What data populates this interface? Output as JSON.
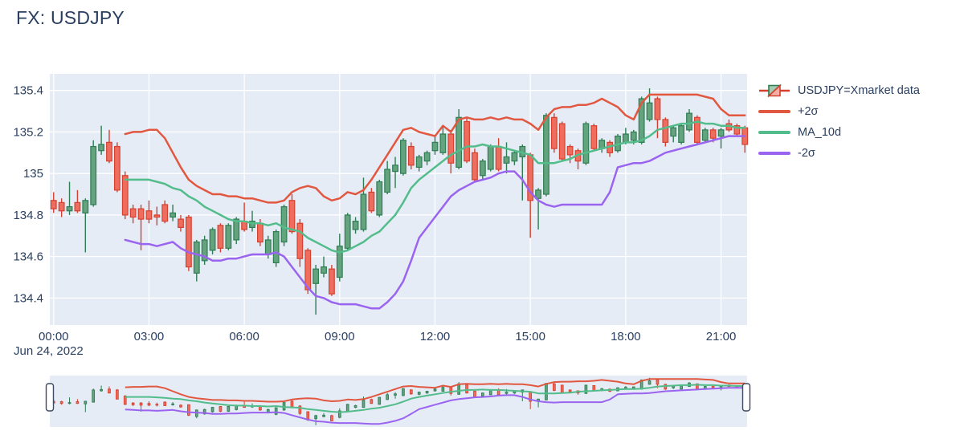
{
  "title": "FX: USDJPY",
  "date_label": "Jun 24, 2022",
  "colors": {
    "paper": "#ffffff",
    "plot_bg": "#e5ecf6",
    "grid": "#ffffff",
    "text": "#2a3f5f",
    "up_line": "#2f7d53",
    "up_fill": "#63a37d",
    "up_fill_legend": "#a3cab2",
    "down_line": "#d5402f",
    "down_fill": "#ed6e5e",
    "down_fill_legend": "#f3b0a8",
    "sigma_plus": "#e2573f",
    "ma": "#53bc8b",
    "sigma_minus": "#9b64f0",
    "handle_stroke": "#3c4a63"
  },
  "legend": {
    "items": [
      {
        "label": "USDJPY=Xmarket data",
        "type": "candlestick"
      },
      {
        "label": "+2σ",
        "type": "line",
        "color_key": "sigma_plus"
      },
      {
        "label": "MA_10d",
        "type": "line",
        "color_key": "ma"
      },
      {
        "label": "-2σ",
        "type": "line",
        "color_key": "sigma_minus"
      }
    ]
  },
  "chart_data": {
    "type": "candlestick",
    "title": "FX: USDJPY",
    "date": "Jun 24, 2022",
    "start_time": "00:00",
    "interval_minutes": 15,
    "legend_position": "right",
    "grid": true,
    "rangeslider": true,
    "x_ticks": {
      "labels": [
        "00:00",
        "03:00",
        "06:00",
        "09:00",
        "12:00",
        "15:00",
        "18:00",
        "21:00"
      ],
      "hours": [
        0,
        3,
        6,
        9,
        12,
        15,
        18,
        21
      ]
    },
    "y_ticks": {
      "labels": [
        "134.4",
        "134.6",
        "134.8",
        "135",
        "135.2",
        "135.4"
      ],
      "values": [
        134.4,
        134.6,
        134.8,
        135,
        135.2,
        135.4
      ]
    },
    "x_range_hours": [
      -0.12,
      21.82
    ],
    "y_range": [
      134.27,
      135.48
    ],
    "candles_ohlc": [
      [
        134.87,
        134.91,
        134.81,
        134.83
      ],
      [
        134.86,
        134.88,
        134.79,
        134.82
      ],
      [
        134.82,
        134.96,
        134.8,
        134.84
      ],
      [
        134.86,
        134.92,
        134.81,
        134.82
      ],
      [
        134.81,
        134.88,
        134.62,
        134.87
      ],
      [
        134.85,
        135.16,
        134.84,
        135.13
      ],
      [
        135.11,
        135.23,
        135.09,
        135.14
      ],
      [
        135.15,
        135.21,
        135.05,
        135.06
      ],
      [
        135.13,
        135.15,
        134.91,
        134.92
      ],
      [
        134.99,
        135.01,
        134.78,
        134.8
      ],
      [
        134.83,
        134.85,
        134.76,
        134.79
      ],
      [
        134.83,
        134.85,
        134.63,
        134.78
      ],
      [
        134.82,
        134.87,
        134.76,
        134.78
      ],
      [
        134.8,
        134.84,
        134.75,
        134.79
      ],
      [
        134.85,
        134.87,
        134.76,
        134.77
      ],
      [
        134.79,
        134.85,
        134.77,
        134.81
      ],
      [
        134.78,
        134.8,
        134.72,
        134.74
      ],
      [
        134.79,
        134.8,
        134.53,
        134.55
      ],
      [
        134.52,
        134.68,
        134.48,
        134.67
      ],
      [
        134.58,
        134.7,
        134.56,
        134.68
      ],
      [
        134.63,
        134.74,
        134.61,
        134.73
      ],
      [
        134.75,
        134.76,
        134.62,
        134.64
      ],
      [
        134.64,
        134.76,
        134.63,
        134.75
      ],
      [
        134.68,
        134.79,
        134.66,
        134.78
      ],
      [
        134.77,
        134.86,
        134.72,
        134.73
      ],
      [
        134.74,
        134.82,
        134.72,
        134.77
      ],
      [
        134.76,
        134.78,
        134.65,
        134.67
      ],
      [
        134.61,
        134.7,
        134.59,
        134.68
      ],
      [
        134.57,
        134.73,
        134.55,
        134.72
      ],
      [
        134.67,
        134.85,
        134.65,
        134.84
      ],
      [
        134.87,
        134.9,
        134.71,
        134.72
      ],
      [
        134.76,
        134.78,
        134.55,
        134.59
      ],
      [
        134.63,
        134.64,
        134.42,
        134.44
      ],
      [
        134.47,
        134.56,
        134.32,
        134.54
      ],
      [
        134.52,
        134.6,
        134.5,
        134.55
      ],
      [
        134.54,
        134.56,
        134.41,
        134.42
      ],
      [
        134.5,
        134.71,
        134.48,
        134.65
      ],
      [
        134.64,
        134.81,
        134.63,
        134.8
      ],
      [
        134.73,
        134.79,
        134.71,
        134.77
      ],
      [
        134.73,
        134.98,
        134.72,
        134.9
      ],
      [
        134.91,
        134.93,
        134.81,
        134.82
      ],
      [
        134.8,
        134.97,
        134.79,
        134.96
      ],
      [
        134.91,
        135.06,
        134.9,
        135.02
      ],
      [
        135.01,
        135.08,
        134.93,
        135.04
      ],
      [
        135.0,
        135.17,
        134.99,
        135.16
      ],
      [
        135.13,
        135.15,
        135.02,
        135.04
      ],
      [
        135.03,
        135.09,
        135.01,
        135.08
      ],
      [
        135.06,
        135.11,
        135.04,
        135.1
      ],
      [
        135.11,
        135.18,
        135.09,
        135.15
      ],
      [
        135.1,
        135.23,
        135.09,
        135.19
      ],
      [
        135.19,
        135.21,
        135.0,
        135.05
      ],
      [
        135.03,
        135.31,
        135.02,
        135.27
      ],
      [
        135.25,
        135.27,
        135.05,
        135.06
      ],
      [
        135.1,
        135.12,
        134.96,
        134.97
      ],
      [
        134.99,
        135.07,
        134.97,
        135.06
      ],
      [
        135.02,
        135.14,
        135.01,
        135.13
      ],
      [
        135.13,
        135.17,
        135.01,
        135.02
      ],
      [
        135.05,
        135.15,
        135.0,
        135.08
      ],
      [
        135.06,
        135.11,
        135.04,
        135.1
      ],
      [
        135.08,
        135.14,
        134.87,
        135.13
      ],
      [
        135.09,
        135.1,
        134.69,
        134.87
      ],
      [
        134.88,
        134.93,
        134.73,
        134.92
      ],
      [
        134.9,
        135.29,
        134.89,
        135.28
      ],
      [
        135.27,
        135.29,
        135.1,
        135.12
      ],
      [
        135.24,
        135.25,
        135.06,
        135.07
      ],
      [
        135.13,
        135.14,
        135.05,
        135.09
      ],
      [
        135.11,
        135.12,
        135.02,
        135.06
      ],
      [
        135.05,
        135.25,
        135.04,
        135.24
      ],
      [
        135.23,
        135.24,
        135.11,
        135.12
      ],
      [
        135.12,
        135.17,
        135.1,
        135.16
      ],
      [
        135.15,
        135.16,
        135.08,
        135.1
      ],
      [
        135.11,
        135.19,
        135.1,
        135.18
      ],
      [
        135.15,
        135.22,
        135.14,
        135.19
      ],
      [
        135.16,
        135.21,
        135.14,
        135.2
      ],
      [
        135.15,
        135.37,
        135.14,
        135.36
      ],
      [
        135.26,
        135.41,
        135.25,
        135.34
      ],
      [
        135.36,
        135.37,
        135.17,
        135.26
      ],
      [
        135.26,
        135.27,
        135.13,
        135.15
      ],
      [
        135.18,
        135.23,
        135.15,
        135.22
      ],
      [
        135.15,
        135.24,
        135.14,
        135.23
      ],
      [
        135.21,
        135.31,
        135.2,
        135.29
      ],
      [
        135.27,
        135.28,
        135.14,
        135.15
      ],
      [
        135.16,
        135.22,
        135.15,
        135.21
      ],
      [
        135.21,
        135.22,
        135.15,
        135.17
      ],
      [
        135.18,
        135.22,
        135.12,
        135.21
      ],
      [
        135.24,
        135.26,
        135.2,
        135.21
      ],
      [
        135.23,
        135.24,
        135.18,
        135.19
      ],
      [
        135.22,
        135.23,
        135.1,
        135.14
      ]
    ],
    "series": [
      {
        "name": "+2σ",
        "color_key": "sigma_plus",
        "start_index": 9,
        "values": [
          135.19,
          135.2,
          135.2,
          135.21,
          135.21,
          135.17,
          135.1,
          135.03,
          134.97,
          134.94,
          134.92,
          134.9,
          134.9,
          134.89,
          134.89,
          134.88,
          134.88,
          134.87,
          134.86,
          134.86,
          134.87,
          134.91,
          134.93,
          134.94,
          134.93,
          134.89,
          134.87,
          134.88,
          134.91,
          134.9,
          134.92,
          134.97,
          135.03,
          135.09,
          135.15,
          135.21,
          135.22,
          135.2,
          135.19,
          135.18,
          135.23,
          135.2,
          135.26,
          135.27,
          135.26,
          135.26,
          135.27,
          135.26,
          135.27,
          135.26,
          135.26,
          135.24,
          135.21,
          135.27,
          135.31,
          135.32,
          135.32,
          135.33,
          135.33,
          135.34,
          135.36,
          135.34,
          135.32,
          135.28,
          135.26,
          135.34,
          135.38,
          135.38,
          135.38,
          135.38,
          135.38,
          135.38,
          135.38,
          135.37,
          135.36,
          135.31,
          135.28,
          135.28,
          135.28
        ]
      },
      {
        "name": "MA_10d",
        "color_key": "ma",
        "start_index": 9,
        "values": [
          134.97,
          134.97,
          134.97,
          134.97,
          134.96,
          134.95,
          134.93,
          134.92,
          134.89,
          134.87,
          134.84,
          134.82,
          134.8,
          134.78,
          134.77,
          134.77,
          134.76,
          134.76,
          134.75,
          134.76,
          134.74,
          134.73,
          134.72,
          134.69,
          134.67,
          134.65,
          134.63,
          134.62,
          134.63,
          134.65,
          134.67,
          134.7,
          134.72,
          134.76,
          134.8,
          134.86,
          134.93,
          134.97,
          135.0,
          135.03,
          135.06,
          135.09,
          135.11,
          135.13,
          135.13,
          135.14,
          135.13,
          135.13,
          135.12,
          135.11,
          135.1,
          135.09,
          135.05,
          135.05,
          135.05,
          135.06,
          135.07,
          135.09,
          135.1,
          135.11,
          135.12,
          135.13,
          135.14,
          135.15,
          135.15,
          135.16,
          135.18,
          135.21,
          135.22,
          135.23,
          135.24,
          135.24,
          135.25,
          135.24,
          135.24,
          135.23,
          135.23,
          135.22,
          135.22
        ]
      },
      {
        "name": "-2σ",
        "color_key": "sigma_minus",
        "start_index": 9,
        "values": [
          134.68,
          134.67,
          134.66,
          134.66,
          134.65,
          134.66,
          134.67,
          134.64,
          134.62,
          134.61,
          134.6,
          134.58,
          134.58,
          134.59,
          134.59,
          134.6,
          134.61,
          134.61,
          134.61,
          134.62,
          134.6,
          134.55,
          134.5,
          134.45,
          134.41,
          134.4,
          134.38,
          134.37,
          134.37,
          134.37,
          134.36,
          134.35,
          134.35,
          134.38,
          134.42,
          134.48,
          134.58,
          134.69,
          134.74,
          134.79,
          134.84,
          134.89,
          134.92,
          134.94,
          134.96,
          134.97,
          134.98,
          135.0,
          135.01,
          135.01,
          134.97,
          134.91,
          134.87,
          134.85,
          134.84,
          134.85,
          134.85,
          134.85,
          134.85,
          134.85,
          134.85,
          134.91,
          135.03,
          135.04,
          135.05,
          135.05,
          135.06,
          135.08,
          135.1,
          135.11,
          135.12,
          135.13,
          135.14,
          135.15,
          135.16,
          135.17,
          135.18,
          135.18,
          135.18
        ]
      }
    ]
  }
}
